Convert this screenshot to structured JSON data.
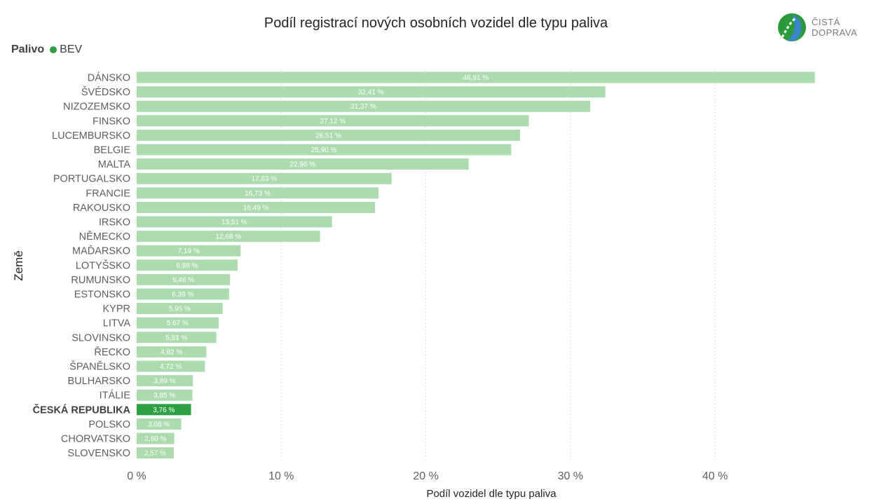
{
  "chart_data": {
    "type": "bar",
    "orientation": "horizontal",
    "title": "Podíl registrací nových osobních vozidel dle typu paliva",
    "legend": {
      "title": "Palivo",
      "series_name": "BEV"
    },
    "xlabel": "Podíl vozidel dle typu paliva",
    "ylabel": "Země",
    "xlim": [
      0,
      47
    ],
    "x_ticks": [
      0,
      10,
      20,
      30,
      40
    ],
    "x_tick_labels": [
      "0 %",
      "10 %",
      "20 %",
      "30 %",
      "40 %"
    ],
    "grid": true,
    "categories": [
      "DÁNSKO",
      "ŠVÉDSKO",
      "NIZOZEMSKO",
      "FINSKO",
      "LUCEMBURSKO",
      "BELGIE",
      "MALTA",
      "PORTUGALSKO",
      "FRANCIE",
      "RAKOUSKO",
      "IRSKO",
      "NĚMECKO",
      "MAĎARSKO",
      "LOTYŠSKO",
      "RUMUNSKO",
      "ESTONSKO",
      "KYPR",
      "LITVA",
      "SLOVINSKO",
      "ŘECKO",
      "ŠPANĚLSKO",
      "BULHARSKO",
      "ITÁLIE",
      "ČESKÁ REPUBLIKA",
      "POLSKO",
      "CHORVATSKO",
      "SLOVENSKO"
    ],
    "values": [
      46.91,
      32.41,
      31.37,
      27.12,
      26.51,
      25.9,
      22.96,
      17.63,
      16.73,
      16.49,
      13.51,
      12.68,
      7.19,
      6.98,
      6.46,
      6.39,
      5.95,
      5.67,
      5.51,
      4.82,
      4.72,
      3.89,
      3.85,
      3.76,
      3.08,
      2.6,
      2.57
    ],
    "value_labels": [
      "46,91 %",
      "32,41 %",
      "31,37 %",
      "27,12 %",
      "26,51 %",
      "25,90 %",
      "22,96 %",
      "17,63 %",
      "16,73 %",
      "16,49 %",
      "13,51 %",
      "12,68 %",
      "7,19 %",
      "6,98 %",
      "6,46 %",
      "6,39 %",
      "5,95 %",
      "5,67 %",
      "5,51 %",
      "4,82 %",
      "4,72 %",
      "3,89 %",
      "3,85 %",
      "3,76 %",
      "3,08 %",
      "2,60 %",
      "2,57 %"
    ],
    "highlight_category": "ČESKÁ REPUBLIKA",
    "colors": {
      "bar": "#acdbb0",
      "highlight": "#2ea043",
      "legend_dot": "#2ea043",
      "grid": "#dcdcdc"
    }
  },
  "logo": {
    "line1": "ČISTÁ",
    "line2": "DOPRAVA"
  }
}
